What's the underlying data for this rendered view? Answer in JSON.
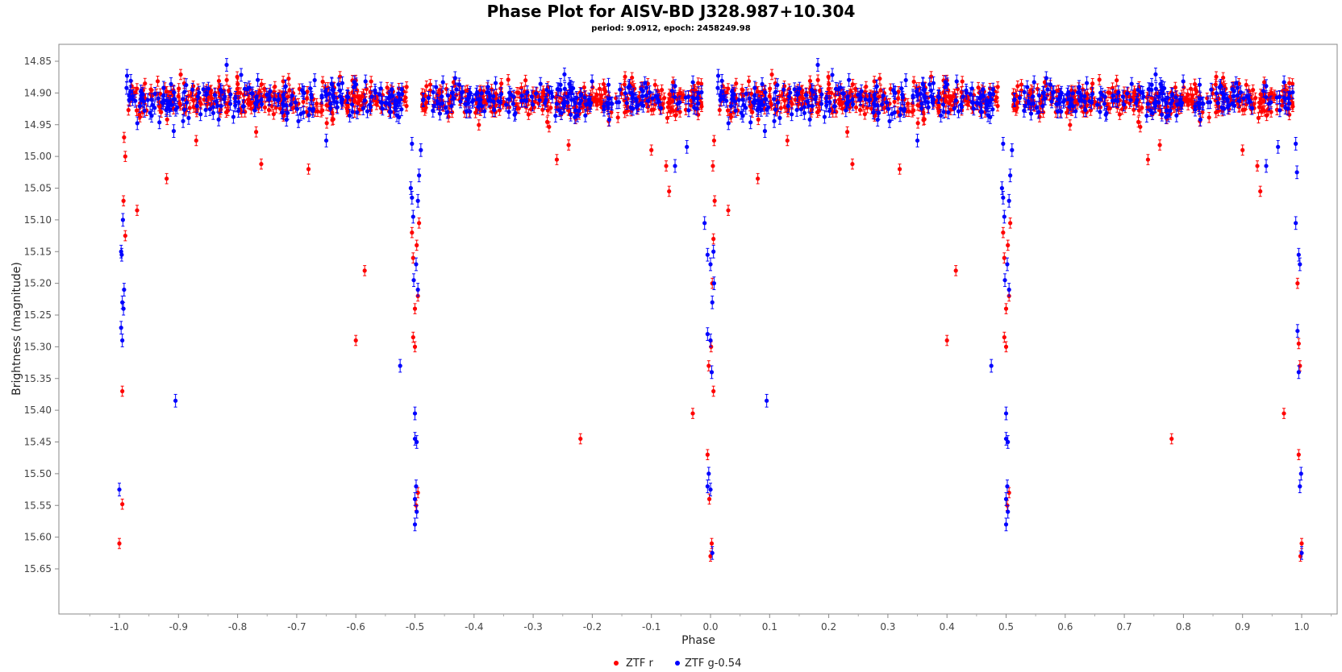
{
  "chart_data": {
    "type": "scatter",
    "title": "Phase Plot for AISV-BD J328.987+10.304",
    "subtitle": "period: 9.0912, epoch: 2458249.98",
    "xlabel": "Phase",
    "ylabel": "Brightness (magnitude)",
    "xlim": [
      -1.1,
      1.1
    ],
    "ylim": [
      14.83,
      15.67
    ],
    "y_inverted": true,
    "x_ticks": [
      "-1.0",
      "-0.9",
      "-0.8",
      "-0.7",
      "-0.6",
      "-0.5",
      "-0.4",
      "-0.3",
      "-0.2",
      "-0.1",
      "0.0",
      "0.1",
      "0.2",
      "0.3",
      "0.4",
      "0.5",
      "0.6",
      "0.7",
      "0.8",
      "0.9",
      "1.0"
    ],
    "y_ticks": [
      "14.85",
      "14.90",
      "14.95",
      "15.00",
      "15.05",
      "15.10",
      "15.15",
      "15.20",
      "15.25",
      "15.30",
      "15.35",
      "15.40",
      "15.45",
      "15.50",
      "15.55",
      "15.60",
      "15.65"
    ],
    "grid": false,
    "legend_position": "bottom",
    "series": [
      {
        "name": "ZTF r",
        "color": "#ff0000",
        "error": 0.008,
        "baseline_mag": 14.91,
        "baseline_scatter": 0.03,
        "baseline_points_per_cycle": 640,
        "outliers": [
          [
            -0.995,
            15.37
          ],
          [
            -0.995,
            15.548
          ],
          [
            -1.0,
            15.61
          ],
          [
            -0.99,
            15.125
          ],
          [
            -0.993,
            15.07
          ],
          [
            -0.99,
            15.0
          ],
          [
            -0.992,
            14.97
          ],
          [
            -0.97,
            15.085
          ],
          [
            -0.92,
            15.035
          ],
          [
            -0.87,
            14.975
          ],
          [
            -0.76,
            15.012
          ],
          [
            -0.68,
            15.02
          ],
          [
            -0.585,
            15.18
          ],
          [
            -0.6,
            15.29
          ],
          [
            -0.5,
            15.3
          ],
          [
            -0.5,
            15.24
          ],
          [
            -0.495,
            15.22
          ],
          [
            -0.503,
            15.16
          ],
          [
            -0.497,
            15.14
          ],
          [
            -0.505,
            15.12
          ],
          [
            -0.493,
            15.105
          ],
          [
            -0.503,
            15.285
          ],
          [
            -0.498,
            15.55
          ],
          [
            -0.495,
            15.53
          ],
          [
            -0.22,
            15.445
          ],
          [
            -0.26,
            15.005
          ],
          [
            -0.24,
            14.982
          ],
          [
            -0.1,
            14.99
          ],
          [
            -0.075,
            15.015
          ],
          [
            -0.07,
            15.055
          ],
          [
            -0.03,
            15.405
          ],
          [
            -0.005,
            15.47
          ],
          [
            0.002,
            15.61
          ],
          [
            0.0,
            15.63
          ],
          [
            -0.002,
            15.54
          ],
          [
            0.005,
            15.37
          ],
          [
            -0.003,
            15.33
          ],
          [
            0.001,
            15.3
          ],
          [
            0.003,
            15.2
          ],
          [
            0.005,
            15.13
          ],
          [
            0.007,
            15.07
          ],
          [
            0.004,
            15.015
          ],
          [
            0.006,
            14.975
          ],
          [
            0.03,
            15.085
          ],
          [
            0.08,
            15.035
          ],
          [
            0.13,
            14.975
          ],
          [
            0.24,
            15.012
          ],
          [
            0.32,
            15.02
          ],
          [
            0.415,
            15.18
          ],
          [
            0.4,
            15.29
          ],
          [
            0.5,
            15.3
          ],
          [
            0.5,
            15.24
          ],
          [
            0.505,
            15.22
          ],
          [
            0.497,
            15.16
          ],
          [
            0.503,
            15.14
          ],
          [
            0.495,
            15.12
          ],
          [
            0.507,
            15.105
          ],
          [
            0.497,
            15.285
          ],
          [
            0.502,
            15.55
          ],
          [
            0.505,
            15.53
          ],
          [
            0.78,
            15.445
          ],
          [
            0.74,
            15.005
          ],
          [
            0.76,
            14.982
          ],
          [
            0.9,
            14.99
          ],
          [
            0.925,
            15.015
          ],
          [
            0.93,
            15.055
          ],
          [
            0.97,
            15.405
          ],
          [
            0.995,
            15.47
          ],
          [
            1.0,
            15.61
          ],
          [
            0.998,
            15.63
          ],
          [
            0.993,
            15.2
          ],
          [
            0.995,
            15.295
          ],
          [
            0.997,
            15.33
          ]
        ]
      },
      {
        "name": "ZTF g-0.54",
        "color": "#0000ff",
        "error": 0.01,
        "baseline_mag": 14.91,
        "baseline_scatter": 0.03,
        "baseline_points_per_cycle": 420,
        "outliers": [
          [
            -1.0,
            15.525
          ],
          [
            -0.995,
            15.29
          ],
          [
            -0.997,
            15.27
          ],
          [
            -0.993,
            15.24
          ],
          [
            -0.995,
            15.23
          ],
          [
            -0.992,
            15.21
          ],
          [
            -0.996,
            15.155
          ],
          [
            -0.994,
            15.1
          ],
          [
            -0.997,
            15.15
          ],
          [
            -0.905,
            15.385
          ],
          [
            -0.908,
            14.96
          ],
          [
            -0.65,
            14.975
          ],
          [
            -0.525,
            15.33
          ],
          [
            -0.5,
            15.405
          ],
          [
            -0.5,
            15.445
          ],
          [
            -0.497,
            15.45
          ],
          [
            -0.5,
            15.58
          ],
          [
            -0.497,
            15.56
          ],
          [
            -0.5,
            15.54
          ],
          [
            -0.498,
            15.52
          ],
          [
            -0.502,
            15.195
          ],
          [
            -0.495,
            15.21
          ],
          [
            -0.498,
            15.17
          ],
          [
            -0.503,
            15.095
          ],
          [
            -0.505,
            15.065
          ],
          [
            -0.507,
            15.05
          ],
          [
            -0.495,
            15.07
          ],
          [
            -0.493,
            15.03
          ],
          [
            -0.505,
            14.98
          ],
          [
            -0.49,
            14.99
          ],
          [
            -0.06,
            15.015
          ],
          [
            -0.04,
            14.985
          ],
          [
            -0.01,
            15.105
          ],
          [
            -0.005,
            15.155
          ],
          [
            0.0,
            15.17
          ],
          [
            0.005,
            15.15
          ],
          [
            -0.005,
            15.28
          ],
          [
            0.0,
            15.29
          ],
          [
            0.003,
            15.23
          ],
          [
            0.006,
            15.2
          ],
          [
            0.002,
            15.34
          ],
          [
            -0.005,
            15.52
          ],
          [
            0.0,
            15.525
          ],
          [
            -0.003,
            15.5
          ],
          [
            0.003,
            15.625
          ],
          [
            0.095,
            15.385
          ],
          [
            0.092,
            14.96
          ],
          [
            0.35,
            14.975
          ],
          [
            0.475,
            15.33
          ],
          [
            0.5,
            15.405
          ],
          [
            0.5,
            15.445
          ],
          [
            0.503,
            15.45
          ],
          [
            0.5,
            15.58
          ],
          [
            0.503,
            15.56
          ],
          [
            0.5,
            15.54
          ],
          [
            0.502,
            15.52
          ],
          [
            0.498,
            15.195
          ],
          [
            0.505,
            15.21
          ],
          [
            0.502,
            15.17
          ],
          [
            0.497,
            15.095
          ],
          [
            0.495,
            15.065
          ],
          [
            0.493,
            15.05
          ],
          [
            0.505,
            15.07
          ],
          [
            0.507,
            15.03
          ],
          [
            0.495,
            14.98
          ],
          [
            0.51,
            14.99
          ],
          [
            0.94,
            15.015
          ],
          [
            0.96,
            14.985
          ],
          [
            0.99,
            15.105
          ],
          [
            0.995,
            15.155
          ],
          [
            0.997,
            15.17
          ],
          [
            0.993,
            15.275
          ],
          [
            0.995,
            15.34
          ],
          [
            0.997,
            15.52
          ],
          [
            0.999,
            15.5
          ],
          [
            1.0,
            15.625
          ],
          [
            0.992,
            15.025
          ],
          [
            0.99,
            14.98
          ]
        ]
      }
    ]
  }
}
